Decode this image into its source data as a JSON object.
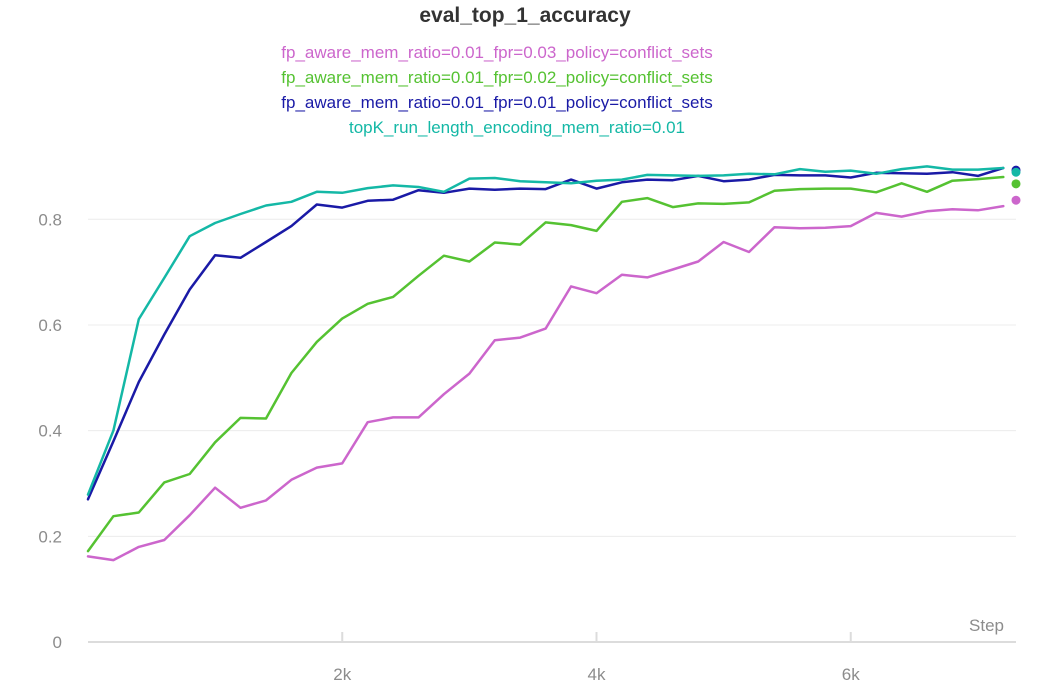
{
  "chart_data": {
    "type": "line",
    "title": "eval_top_1_accuracy",
    "xlabel": "Step",
    "ylabel": "",
    "xlim": [
      0,
      7300
    ],
    "ylim": [
      0,
      0.95
    ],
    "x_ticks": [
      {
        "value": 2000,
        "label": "2k"
      },
      {
        "value": 4000,
        "label": "4k"
      },
      {
        "value": 6000,
        "label": "6k"
      }
    ],
    "y_ticks": [
      {
        "value": 0,
        "label": "0"
      },
      {
        "value": 0.2,
        "label": "0.2"
      },
      {
        "value": 0.4,
        "label": "0.4"
      },
      {
        "value": 0.6,
        "label": "0.6"
      },
      {
        "value": 0.8,
        "label": "0.8"
      }
    ],
    "grid": true,
    "legend_position": "top",
    "x": [
      0,
      200,
      400,
      600,
      800,
      1000,
      1200,
      1400,
      1600,
      1800,
      2000,
      2200,
      2400,
      2600,
      2800,
      3000,
      3200,
      3400,
      3600,
      3800,
      4000,
      4200,
      4400,
      4600,
      4800,
      5000,
      5200,
      5400,
      5600,
      5800,
      6000,
      6200,
      6400,
      6600,
      6800,
      7000,
      7200
    ],
    "series": [
      {
        "name": "fp_aware_mem_ratio=0.01_fpr=0.03_policy=conflict_sets",
        "color": "#cc66cc",
        "values": [
          0.162,
          0.155,
          0.18,
          0.193,
          0.24,
          0.292,
          0.254,
          0.268,
          0.307,
          0.33,
          0.338,
          0.416,
          0.425,
          0.425,
          0.469,
          0.508,
          0.571,
          0.576,
          0.593,
          0.673,
          0.66,
          0.695,
          0.69,
          0.705,
          0.72,
          0.757,
          0.738,
          0.785,
          0.783,
          0.784,
          0.787,
          0.812,
          0.805,
          0.815,
          0.819,
          0.817,
          0.825
        ]
      },
      {
        "name": "fp_aware_mem_ratio=0.01_fpr=0.02_policy=conflict_sets",
        "color": "#55c232",
        "values": [
          0.172,
          0.238,
          0.245,
          0.302,
          0.318,
          0.378,
          0.424,
          0.423,
          0.509,
          0.568,
          0.612,
          0.64,
          0.653,
          0.693,
          0.731,
          0.72,
          0.756,
          0.752,
          0.794,
          0.789,
          0.778,
          0.833,
          0.84,
          0.823,
          0.83,
          0.829,
          0.832,
          0.854,
          0.857,
          0.858,
          0.858,
          0.851,
          0.868,
          0.852,
          0.873,
          0.876,
          0.88
        ]
      },
      {
        "name": "fp_aware_mem_ratio=0.01_fpr=0.01_policy=conflict_sets",
        "color": "#1a1aa6",
        "values": [
          0.27,
          0.38,
          0.492,
          0.582,
          0.667,
          0.732,
          0.727,
          0.757,
          0.787,
          0.828,
          0.822,
          0.835,
          0.837,
          0.855,
          0.85,
          0.858,
          0.856,
          0.858,
          0.857,
          0.875,
          0.858,
          0.87,
          0.875,
          0.874,
          0.882,
          0.872,
          0.875,
          0.884,
          0.883,
          0.883,
          0.879,
          0.888,
          0.887,
          0.886,
          0.889,
          0.882,
          0.897
        ]
      },
      {
        "name": "topK_run_length_encoding_mem_ratio=0.01",
        "color": "#14b8a6",
        "values": [
          0.279,
          0.4,
          0.611,
          0.689,
          0.768,
          0.793,
          0.81,
          0.826,
          0.833,
          0.852,
          0.85,
          0.859,
          0.864,
          0.861,
          0.852,
          0.877,
          0.878,
          0.872,
          0.87,
          0.868,
          0.873,
          0.875,
          0.884,
          0.883,
          0.882,
          0.883,
          0.886,
          0.885,
          0.895,
          0.89,
          0.892,
          0.886,
          0.895,
          0.9,
          0.894,
          0.894,
          0.897
        ]
      }
    ],
    "end_points": [
      {
        "series": 0,
        "x": 7300,
        "y": 0.836
      },
      {
        "series": 1,
        "x": 7300,
        "y": 0.867
      },
      {
        "series": 2,
        "x": 7300,
        "y": 0.893
      },
      {
        "series": 3,
        "x": 7300,
        "y": 0.889
      }
    ]
  }
}
